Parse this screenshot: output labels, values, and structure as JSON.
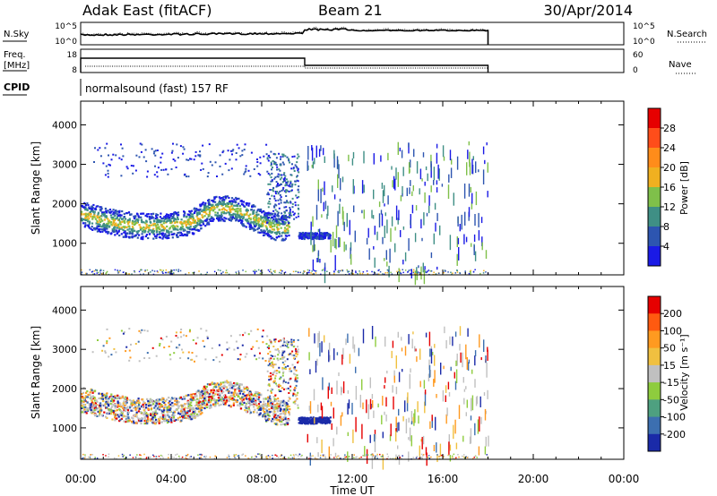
{
  "header": {
    "station": "Adak East (fitACF)",
    "beam": "Beam 21",
    "date": "30/Apr/2014"
  },
  "noise_panel": {
    "left_label": "N.Sky",
    "left_ticks": [
      "10^5",
      "10^0"
    ],
    "right_ticks": [
      "10^5",
      "10^0"
    ],
    "right_label": "N.Search"
  },
  "freq_panel": {
    "left_label_1": "Freq.",
    "left_label_2": "[MHz]",
    "left_ticks": [
      "18",
      "8"
    ],
    "right_ticks": [
      "60",
      "0"
    ],
    "right_label": "Nave"
  },
  "cpid": {
    "label": "CPID",
    "program": "normalsound (fast) 157 RF"
  },
  "time_axis": {
    "label": "Time UT",
    "ticks": [
      "00:00",
      "04:00",
      "08:00",
      "12:00",
      "16:00",
      "20:00",
      "00:00"
    ]
  },
  "chart_data": [
    {
      "type": "heatmap",
      "id": "power",
      "ylabel": "Slant Range [km]",
      "yticks": [
        "1000",
        "2000",
        "3000",
        "4000"
      ],
      "ylim": [
        200,
        4600
      ],
      "xlim_hours": [
        0,
        24
      ],
      "colorbar_label": "Power [dB]",
      "colorbar_ticks": [
        "4",
        "8",
        "12",
        "16",
        "20",
        "24",
        "28"
      ],
      "colorbar_colors": [
        "#1a1ae6",
        "#2d55b0",
        "#3f8f85",
        "#7fc04a",
        "#f0b020",
        "#ff8c1a",
        "#ff4d1a",
        "#e60000"
      ]
    },
    {
      "type": "heatmap",
      "id": "velocity",
      "ylabel": "Slant Range [km]",
      "yticks": [
        "1000",
        "2000",
        "3000",
        "4000"
      ],
      "ylim": [
        200,
        4600
      ],
      "xlim_hours": [
        0,
        24
      ],
      "colorbar_label": "Velocity [m s⁻¹]",
      "colorbar_ticks": [
        "200",
        "100",
        "50",
        "15",
        "-15",
        "-50",
        "-100",
        "-200"
      ],
      "colorbar_colors": [
        "#1a2aa8",
        "#3c6fb0",
        "#4ea080",
        "#8ecc3e",
        "#c0c0c0",
        "#f0c040",
        "#ff9a20",
        "#ff5a10",
        "#e60000"
      ]
    }
  ]
}
